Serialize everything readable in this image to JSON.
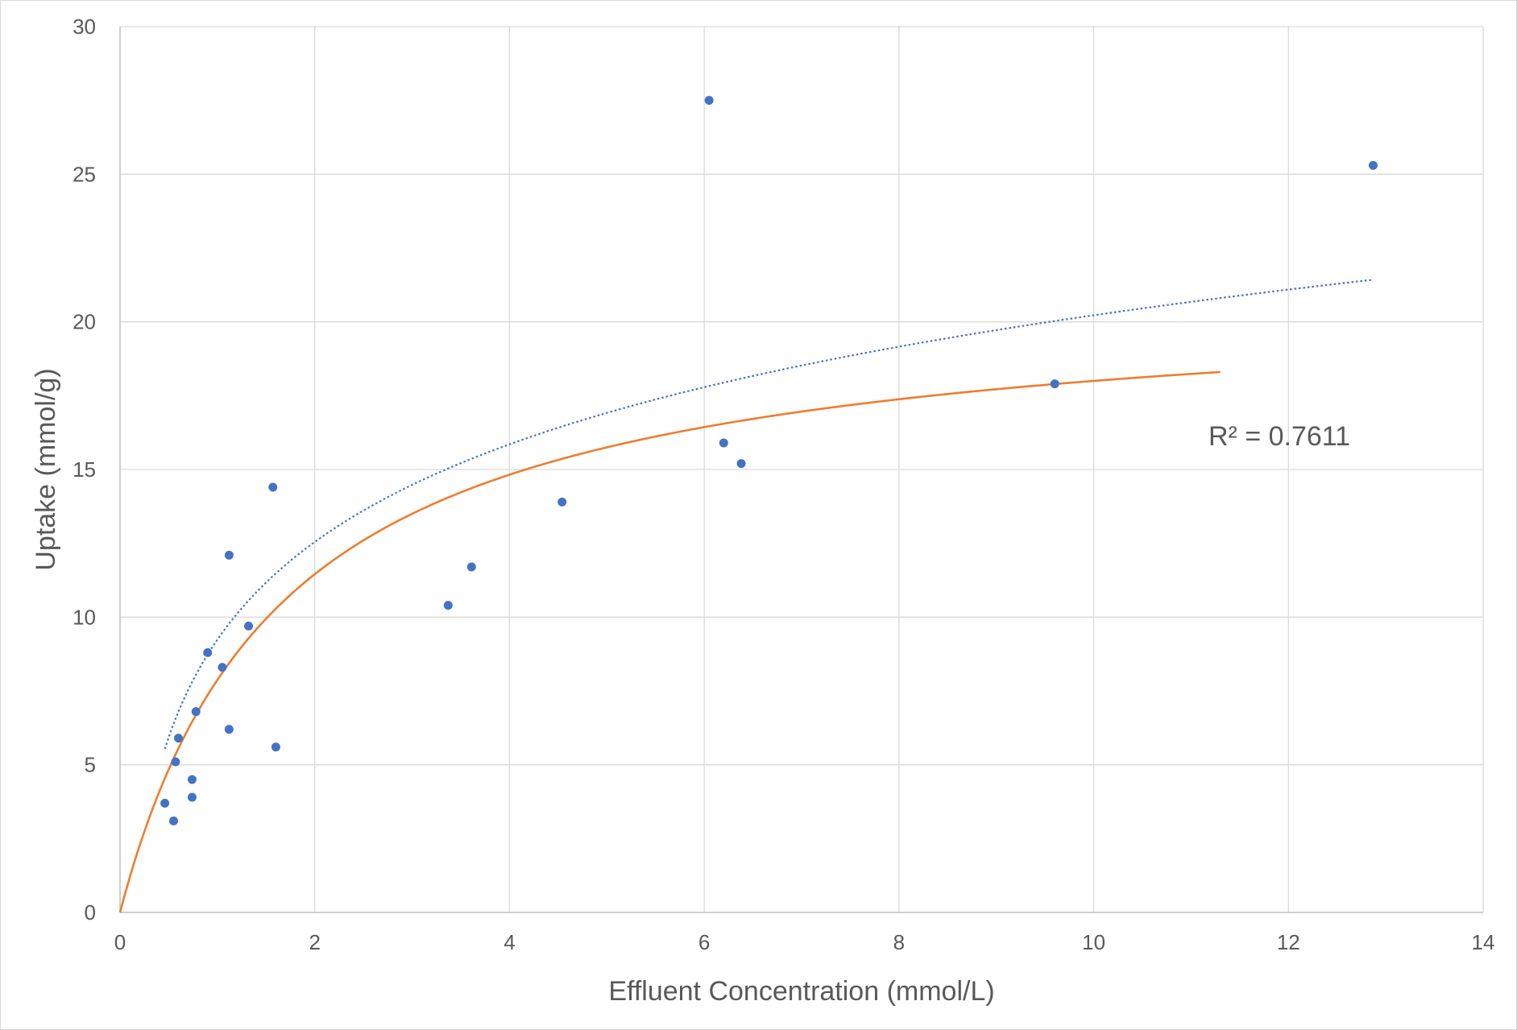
{
  "chart_data": {
    "type": "scatter",
    "title": "",
    "xlabel": "Effluent Concentration (mmol/L)",
    "ylabel": "Uptake (mmol/g)",
    "xlim": [
      0,
      14
    ],
    "ylim": [
      0,
      30
    ],
    "x_ticks": [
      "0",
      "2",
      "4",
      "6",
      "8",
      "10",
      "12",
      "14"
    ],
    "y_ticks": [
      "0",
      "5",
      "10",
      "15",
      "20",
      "25",
      "30"
    ],
    "grid": true,
    "legend": "none",
    "marker_color": "#4472c4",
    "fit_color": "#ed7d31",
    "trendline_color": "#4472c4",
    "series": [
      {
        "points": [
          {
            "x": 0.46,
            "y": 3.7
          },
          {
            "x": 0.55,
            "y": 3.1
          },
          {
            "x": 0.57,
            "y": 5.1
          },
          {
            "x": 0.6,
            "y": 5.9
          },
          {
            "x": 0.74,
            "y": 4.5
          },
          {
            "x": 0.74,
            "y": 3.9
          },
          {
            "x": 0.78,
            "y": 6.8
          },
          {
            "x": 0.9,
            "y": 8.8
          },
          {
            "x": 1.05,
            "y": 8.3
          },
          {
            "x": 1.12,
            "y": 12.1
          },
          {
            "x": 1.12,
            "y": 6.2
          },
          {
            "x": 1.32,
            "y": 9.7
          },
          {
            "x": 1.57,
            "y": 14.4
          },
          {
            "x": 1.6,
            "y": 5.6
          },
          {
            "x": 3.37,
            "y": 10.4
          },
          {
            "x": 3.61,
            "y": 11.7
          },
          {
            "x": 4.54,
            "y": 13.9
          },
          {
            "x": 6.05,
            "y": 27.5
          },
          {
            "x": 6.2,
            "y": 15.9
          },
          {
            "x": 6.38,
            "y": 15.2
          },
          {
            "x": 9.6,
            "y": 17.9
          },
          {
            "x": 12.87,
            "y": 25.3
          }
        ]
      }
    ],
    "fit_curve": {
      "type": "langmuir",
      "qmax": 21.0,
      "K": 0.6,
      "x_range": [
        0,
        11.3
      ]
    },
    "trendline": {
      "type": "log",
      "a": 9.24,
      "b": 4.77,
      "x_range": [
        0.46,
        12.85
      ],
      "r_squared_label": "R² = 0.7611"
    }
  }
}
